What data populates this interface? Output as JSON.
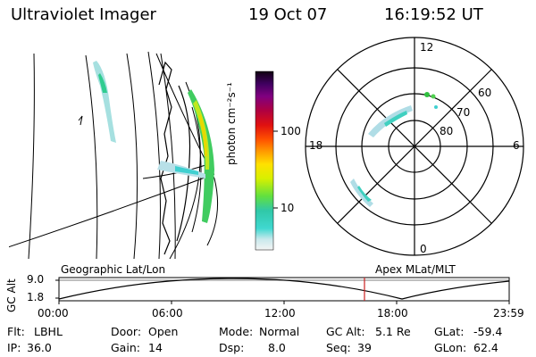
{
  "header": {
    "instrument": "Ultraviolet Imager",
    "date": "19 Oct 07",
    "time": "16:19:52 UT"
  },
  "colorbar": {
    "unit_label": "photon cm⁻²s⁻¹",
    "ticks": [
      "100",
      "10"
    ]
  },
  "polar": {
    "lat_labels": [
      "60",
      "70",
      "80"
    ],
    "mlt_labels": [
      "12",
      "18",
      "6",
      "0"
    ]
  },
  "timeline": {
    "left_label": "Geographic Lat/Lon",
    "right_label": "Apex MLat/MLT",
    "axis_label": "GC Alt",
    "y_ticks": [
      "9.0",
      "1.8"
    ],
    "x_ticks": [
      "00:00",
      "06:00",
      "12:00",
      "18:00",
      "23:59"
    ],
    "current_time_marker": "16:19:52",
    "marker_color": "#cc2222"
  },
  "info": {
    "row1": [
      {
        "key": "Flt:",
        "val": "LBHL"
      },
      {
        "key": "Door:",
        "val": "Open"
      },
      {
        "key": "Mode:",
        "val": "Normal"
      },
      {
        "key": "GC Alt:",
        "val": "5.1 Re"
      },
      {
        "key": "GLat:",
        "val": "-59.4"
      }
    ],
    "row2": [
      {
        "key": "IP:",
        "val": "36.0"
      },
      {
        "key": "Gain:",
        "val": "14"
      },
      {
        "key": "Dsp:",
        "val": "8.0"
      },
      {
        "key": "Seq:",
        "val": "39"
      },
      {
        "key": "GLon:",
        "val": "62.4"
      }
    ]
  }
}
